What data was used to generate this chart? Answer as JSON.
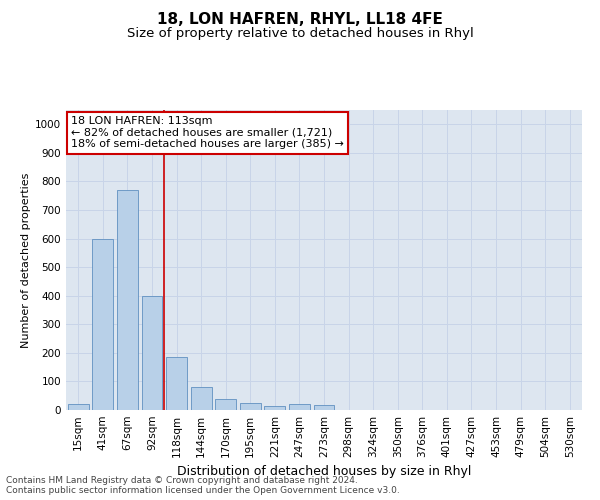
{
  "title": "18, LON HAFREN, RHYL, LL18 4FE",
  "subtitle": "Size of property relative to detached houses in Rhyl",
  "xlabel": "Distribution of detached houses by size in Rhyl",
  "ylabel": "Number of detached properties",
  "categories": [
    "15sqm",
    "41sqm",
    "67sqm",
    "92sqm",
    "118sqm",
    "144sqm",
    "170sqm",
    "195sqm",
    "221sqm",
    "247sqm",
    "273sqm",
    "298sqm",
    "324sqm",
    "350sqm",
    "376sqm",
    "401sqm",
    "427sqm",
    "453sqm",
    "479sqm",
    "504sqm",
    "530sqm"
  ],
  "values": [
    20,
    600,
    770,
    400,
    185,
    80,
    40,
    25,
    15,
    20,
    18,
    0,
    0,
    0,
    0,
    0,
    0,
    0,
    0,
    0,
    0
  ],
  "bar_color": "#b8d0e8",
  "bar_edge_color": "#6090c0",
  "vline_x_index": 4,
  "vline_color": "#cc0000",
  "annotation_line1": "18 LON HAFREN: 113sqm",
  "annotation_line2": "← 82% of detached houses are smaller (1,721)",
  "annotation_line3": "18% of semi-detached houses are larger (385) →",
  "annotation_box_color": "#ffffff",
  "annotation_box_edge_color": "#cc0000",
  "ylim": [
    0,
    1050
  ],
  "yticks": [
    0,
    100,
    200,
    300,
    400,
    500,
    600,
    700,
    800,
    900,
    1000
  ],
  "grid_color": "#c8d4e8",
  "background_color": "#dde6f0",
  "footer_line1": "Contains HM Land Registry data © Crown copyright and database right 2024.",
  "footer_line2": "Contains public sector information licensed under the Open Government Licence v3.0.",
  "title_fontsize": 11,
  "subtitle_fontsize": 9.5,
  "xlabel_fontsize": 9,
  "ylabel_fontsize": 8,
  "tick_fontsize": 7.5,
  "annotation_fontsize": 8,
  "footer_fontsize": 6.5
}
